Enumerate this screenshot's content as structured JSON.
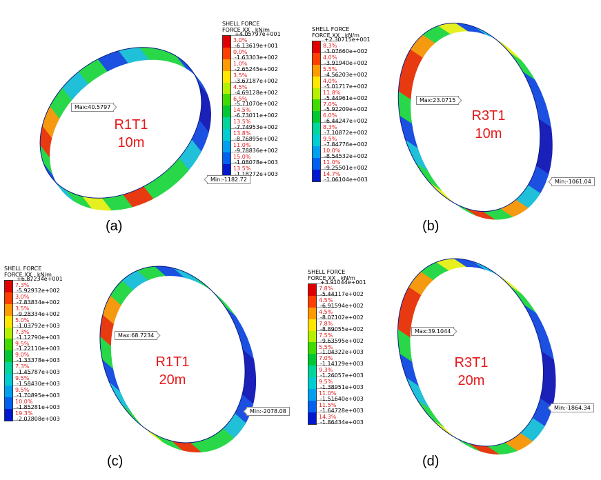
{
  "panels": [
    {
      "legend_title": "SHELL FORCE",
      "legend_subtitle": "FORCE XX , kN/m",
      "values": [
        "+4.05797e+001",
        "-6.13619e+001",
        "-1.63303e+002",
        "-2.65245e+002",
        "-3.67187e+002",
        "-4.69128e+002",
        "-5.71070e+002",
        "-6.73011e+002",
        "-7.74953e+002",
        "-8.76895e+002",
        "-9.78836e+002",
        "-1.08078e+003",
        "-1.18272e+003"
      ],
      "percents": [
        "3.0%",
        "0.0%",
        "1.0%",
        "3.5%",
        "4.5%",
        "6.5%",
        "14.5%",
        "13.5%",
        "13.8%",
        "11.0%",
        "15.0%",
        "13.5%"
      ],
      "max_label": "Max:40.5797",
      "min_label": "Min:-1182.72",
      "case": "R1T1",
      "depth": "10m",
      "caption": "(a)"
    },
    {
      "legend_title": "SHELL FORCE",
      "legend_subtitle": "FORCE XX , kN/m",
      "values": [
        "+2.30715e+001",
        "-3.07660e+002",
        "-3.91940e+002",
        "-4.56203e+002",
        "-5.01717e+002",
        "-5.44961e+002",
        "-5.92209e+002",
        "-6.44247e+002",
        "-7.10872e+002",
        "-7.84776e+002",
        "-8.54532e+002",
        "-9.25501e+002",
        "-1.06104e+003"
      ],
      "percents": [
        "8.3%",
        "4.0%",
        "5.5%",
        "4.0%",
        "11.8%",
        "7.0%",
        "6.0%",
        "8.3%",
        "9.5%",
        "10.0%",
        "11.0%",
        "14.7%"
      ],
      "max_label": "Max:23.0715",
      "min_label": "Min:-1061.04",
      "case": "R3T1",
      "depth": "10m",
      "caption": "(b)"
    },
    {
      "legend_title": "SHELL FORCE",
      "legend_subtitle": "FORCE XX , kN/m",
      "values": [
        "+6.87234e+001",
        "-5.92932e+002",
        "-7.83834e+002",
        "-9.28334e+002",
        "-1.03792e+003",
        "-1.12790e+003",
        "-1.22110e+003",
        "-1.33378e+003",
        "-1.45787e+003",
        "-1.58430e+003",
        "-1.70895e+003",
        "-1.85281e+003",
        "-2.07808e+003"
      ],
      "percents": [
        "7.3%",
        "3.0%",
        "3.5%",
        "5.0%",
        "7.3%",
        "9.5%",
        "9.0%",
        "7.3%",
        "9.5%",
        "9.5%",
        "10.0%",
        "19.3%"
      ],
      "max_label": "Max:68.7234",
      "min_label": "Min:-2078.08",
      "case": "R1T1",
      "depth": "20m",
      "caption": "(c)"
    },
    {
      "legend_title": "SHELL FORCE",
      "legend_subtitle": "FORCE XX , kN/m",
      "values": [
        "+3.91044e+001",
        "-5.44117e+002",
        "-6.91594e+002",
        "-8.07102e+002",
        "-8.89055e+002",
        "-9.63595e+002",
        "-1.04322e+003",
        "-1.14129e+003",
        "-1.26057e+003",
        "-1.38951e+003",
        "-1.51640e+003",
        "-1.64728e+003",
        "-1.86434e+003"
      ],
      "percents": [
        "7.8%",
        "4.5%",
        "4.5%",
        "7.8%",
        "7.5%",
        "5.5%",
        "7.0%",
        "9.3%",
        "9.5%",
        "11.0%",
        "11.5%",
        "14.3%"
      ],
      "max_label": "Max:39.1044",
      "min_label": "Min:-1864.34",
      "case": "R3T1",
      "depth": "20m",
      "caption": "(d)"
    }
  ],
  "colorbar": [
    "#e00000",
    "#ff4000",
    "#ff9a00",
    "#ffe600",
    "#b4f000",
    "#40dc00",
    "#00c832",
    "#00d69c",
    "#00cdd2",
    "#00a0f0",
    "#0060f0",
    "#0018d0"
  ],
  "ring_colors": {
    "red": "#e83a10",
    "orange": "#f59a10",
    "yellow": "#e6f020",
    "green": "#28d848",
    "cyan": "#20c0d8",
    "blue": "#1c50e0",
    "navy": "#1a20b8"
  }
}
